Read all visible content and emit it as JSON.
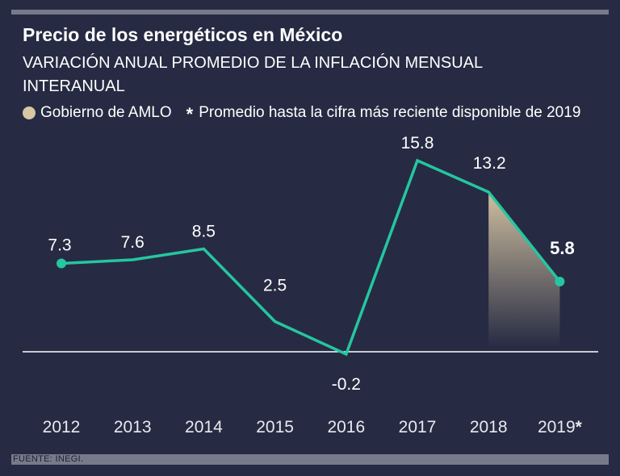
{
  "colors": {
    "background": "#262b43",
    "line": "#25c6a0",
    "highlight": "#d8c6a4",
    "text": "#ffffff"
  },
  "title": "Precio de los energéticos en México",
  "subtitle": "VARIACIÓN ANUAL PROMEDIO DE LA INFLACIÓN MENSUAL INTERANUAL",
  "legend": {
    "highlight_label": "Gobierno de AMLO",
    "note_symbol": "*",
    "note_label": "Promedio hasta la cifra más reciente disponible de 2019"
  },
  "footer": "FUENTE: INEGI.",
  "chart_data": {
    "type": "line",
    "title": "Precio de los energéticos en México",
    "subtitle": "VARIACIÓN ANUAL PROMEDIO DE LA INFLACIÓN MENSUAL INTERANUAL",
    "categories": [
      "2012",
      "2013",
      "2014",
      "2015",
      "2016",
      "2017",
      "2018",
      "2019"
    ],
    "category_labels": [
      "2012",
      "2013",
      "2014",
      "2015",
      "2016",
      "2017",
      "2018",
      "2019*"
    ],
    "values": [
      7.3,
      7.6,
      8.5,
      2.5,
      -0.2,
      15.8,
      13.2,
      5.8
    ],
    "value_labels": [
      "7.3",
      "7.6",
      "8.5",
      "2.5",
      "-0.2",
      "15.8",
      "13.2",
      "5.8"
    ],
    "highlight_range": [
      "2018",
      "2019"
    ],
    "highlight_label": "Gobierno de AMLO",
    "baseline": 0,
    "ylim": [
      -0.2,
      15.8
    ],
    "grid": false,
    "legend_position": "top-left"
  }
}
